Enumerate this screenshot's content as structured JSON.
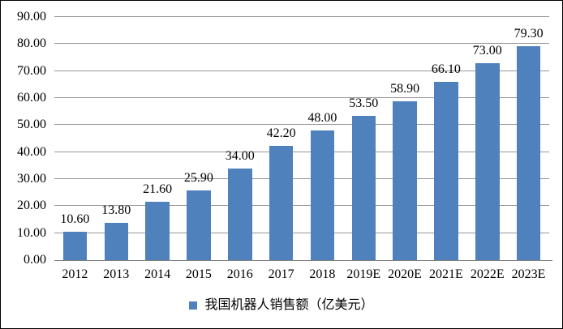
{
  "chart_data": {
    "type": "bar",
    "title": "",
    "xlabel": "",
    "ylabel": "",
    "categories": [
      "2012",
      "2013",
      "2014",
      "2015",
      "2016",
      "2017",
      "2018",
      "2019E",
      "2020E",
      "2021E",
      "2022E",
      "2023E"
    ],
    "values": [
      10.6,
      13.8,
      21.6,
      25.9,
      34.0,
      42.2,
      48.0,
      53.5,
      58.9,
      66.1,
      73.0,
      79.3
    ],
    "value_labels": [
      "10.60",
      "13.80",
      "21.60",
      "25.90",
      "34.00",
      "42.20",
      "48.00",
      "53.50",
      "58.90",
      "66.10",
      "73.00",
      "79.30"
    ],
    "y_ticks": [
      "0.00",
      "10.00",
      "20.00",
      "30.00",
      "40.00",
      "50.00",
      "60.00",
      "70.00",
      "80.00",
      "90.00"
    ],
    "ylim": [
      0,
      90
    ],
    "y_step": 10,
    "grid": "horizontal",
    "legend": "我国机器人销售额（亿美元）",
    "legend_position": "bottom",
    "colors": {
      "bar": "#4f81bd",
      "gridline": "#969696",
      "axis": "#808080",
      "text": "#000000",
      "background": "#ffffff",
      "border": "#000000"
    }
  }
}
